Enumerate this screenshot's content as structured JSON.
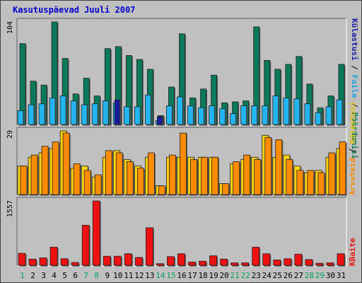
{
  "chart_data": [
    {
      "type": "bar",
      "title": "Kasutuspäevad Juuli 2007",
      "ymax_label": "104",
      "categories": [
        "1",
        "2",
        "3",
        "4",
        "5",
        "6",
        "7",
        "8",
        "9",
        "10",
        "11",
        "12",
        "13",
        "14",
        "15",
        "16",
        "17",
        "18",
        "19",
        "20",
        "21",
        "22",
        "23",
        "24",
        "25",
        "26",
        "27",
        "28",
        "29",
        "30",
        "31"
      ],
      "weekend_days": [
        "1",
        "7",
        "8",
        "14",
        "15",
        "21",
        "22",
        "28",
        "29"
      ],
      "right_labels": [
        "Külastusi",
        "Faile",
        "Pöördumisi"
      ],
      "series": [
        {
          "name": "Pöördumisi",
          "color": "#0a7a5a",
          "values": [
            82,
            44,
            40,
            104,
            67,
            31,
            47,
            29,
            77,
            79,
            70,
            66,
            56,
            9,
            38,
            92,
            27,
            36,
            50,
            22,
            23,
            24,
            99,
            65,
            56,
            61,
            69,
            41,
            17,
            29,
            61
          ]
        },
        {
          "name": "Faile",
          "color": "#22b5ef",
          "values": [
            14,
            20,
            21,
            27,
            29,
            24,
            20,
            21,
            24,
            22,
            18,
            18,
            30,
            4,
            19,
            28,
            19,
            17,
            19,
            16,
            11,
            19,
            19,
            19,
            29,
            27,
            26,
            21,
            12,
            18,
            25
          ]
        },
        {
          "name": "Külastusi",
          "color": "#1a1aa0",
          "values": [
            null,
            null,
            null,
            null,
            null,
            null,
            null,
            null,
            null,
            25,
            null,
            null,
            null,
            8,
            null,
            null,
            null,
            null,
            null,
            null,
            null,
            null,
            null,
            null,
            null,
            null,
            null,
            null,
            null,
            null,
            null
          ]
        }
      ]
    },
    {
      "type": "bar",
      "ymax_label": "29",
      "categories": [
        "1",
        "2",
        "3",
        "4",
        "5",
        "6",
        "7",
        "8",
        "9",
        "10",
        "11",
        "12",
        "13",
        "14",
        "15",
        "16",
        "17",
        "18",
        "19",
        "20",
        "21",
        "22",
        "23",
        "24",
        "25",
        "26",
        "27",
        "28",
        "29",
        "30",
        "31"
      ],
      "right_labels": [
        "Arvuteid",
        "Külastusi"
      ],
      "series": [
        {
          "name": "Külastusi",
          "color": "#ffd10f",
          "values": [
            13,
            17,
            19,
            21,
            29,
            12,
            13,
            8,
            17,
            20,
            16,
            13,
            17,
            4,
            17,
            17,
            17,
            17,
            17,
            5,
            14,
            16,
            17,
            27,
            17,
            18,
            13,
            10,
            11,
            17,
            21
          ]
        },
        {
          "name": "Arvuteid",
          "color": "#ff8c00",
          "values": [
            13,
            18,
            22,
            24,
            28,
            14,
            11,
            9,
            20,
            19,
            15,
            12,
            19,
            4,
            18,
            28,
            16,
            17,
            17,
            5,
            15,
            18,
            16,
            26,
            25,
            16,
            11,
            11,
            10,
            19,
            24
          ]
        }
      ]
    },
    {
      "type": "bar",
      "ymax_label": "1557",
      "categories": [
        "1",
        "2",
        "3",
        "4",
        "5",
        "6",
        "7",
        "8",
        "9",
        "10",
        "11",
        "12",
        "13",
        "14",
        "15",
        "16",
        "17",
        "18",
        "19",
        "20",
        "21",
        "22",
        "23",
        "24",
        "25",
        "26",
        "27",
        "28",
        "29",
        "30",
        "31"
      ],
      "right_labels": [
        "KBaite"
      ],
      "series": [
        {
          "name": "KBaite",
          "color": "#ee1111",
          "values": [
            290,
            150,
            180,
            440,
            160,
            70,
            970,
            1557,
            220,
            220,
            280,
            190,
            910,
            40,
            210,
            280,
            80,
            100,
            230,
            150,
            60,
            60,
            440,
            280,
            130,
            160,
            270,
            140,
            50,
            60,
            280
          ]
        }
      ]
    }
  ]
}
